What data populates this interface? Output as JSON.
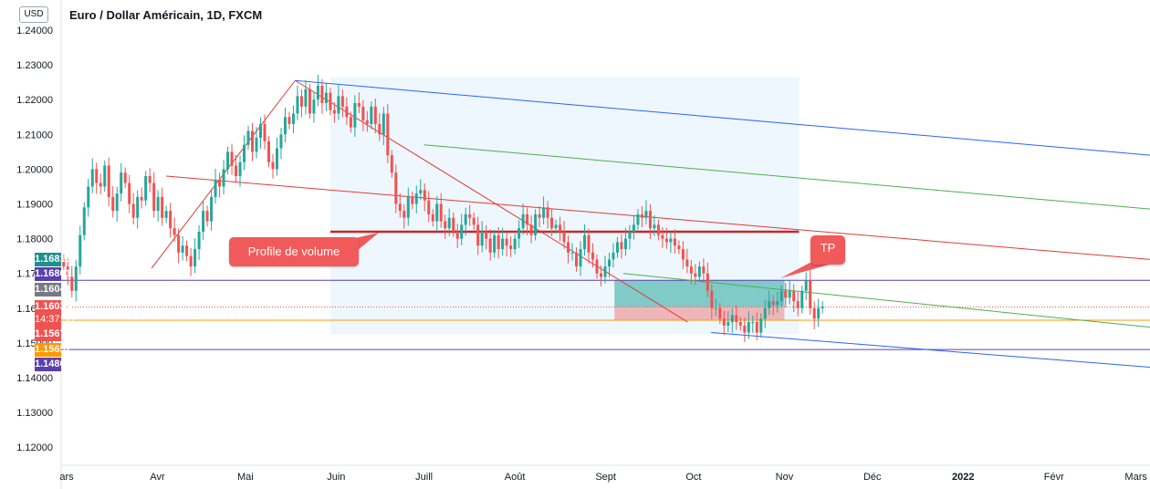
{
  "header": {
    "title": "Euro / Dollar Américain, 1D, FXCM",
    "currency_label": "USD"
  },
  "annotations": {
    "volume_profile_label": "Profile de volume",
    "tp_label": "TP"
  },
  "price_tags": [
    {
      "value": "1.16810",
      "color": "#1f8f8f"
    },
    {
      "value": "1.16801",
      "color": "#5a3fb0"
    },
    {
      "value": "1.16047",
      "color": "#777a82"
    },
    {
      "value": "1.16035",
      "sub": "14:37:56",
      "color": "#ef5350"
    },
    {
      "value": "1.15678",
      "color": "#ef5350"
    },
    {
      "value": "1.15652",
      "color": "#ff9800"
    },
    {
      "value": "1.14809",
      "color": "#5a3fb0"
    }
  ],
  "colors": {
    "up": "#26a69a",
    "down": "#ef5350",
    "channel_blue": "#2962ff",
    "channel_green": "#4caf50",
    "channel_red": "#e53935",
    "level_purple": "#5a3fb0",
    "level_orange": "#ff9800",
    "profile_bg": "#e3f2fd",
    "tp_green": "#26a69a",
    "sl_red": "#ef9a9a"
  },
  "chart_data": {
    "type": "candlestick",
    "y_ticks": [
      "1.24000",
      "1.23000",
      "1.22000",
      "1.21000",
      "1.20000",
      "1.19000",
      "1.18000",
      "1.17000",
      "1.16000",
      "1.15000",
      "1.14000",
      "1.13000",
      "1.12000"
    ],
    "ylim": [
      1.114,
      1.245
    ],
    "x_ticks": [
      "ars",
      "Avr",
      "Mai",
      "Juin",
      "Juill",
      "Août",
      "Sept",
      "Oct",
      "Nov",
      "Déc",
      "2022",
      "Févr",
      "Mars"
    ],
    "x_tick_days": [
      0,
      31,
      61,
      92,
      122,
      153,
      184,
      214,
      245,
      275,
      306,
      337,
      365
    ],
    "candles_start_day": -1,
    "closes": [
      1.172,
      1.169,
      1.165,
      1.172,
      1.181,
      1.189,
      1.195,
      1.2,
      1.196,
      1.195,
      1.201,
      1.192,
      1.188,
      1.193,
      1.199,
      1.196,
      1.19,
      1.186,
      1.192,
      1.191,
      1.198,
      1.196,
      1.188,
      1.192,
      1.186,
      1.188,
      1.183,
      1.181,
      1.176,
      1.178,
      1.175,
      1.172,
      1.177,
      1.182,
      1.188,
      1.185,
      1.192,
      1.197,
      1.195,
      1.2,
      1.205,
      1.201,
      1.198,
      1.202,
      1.207,
      1.211,
      1.205,
      1.209,
      1.213,
      1.208,
      1.202,
      1.2,
      1.206,
      1.21,
      1.215,
      1.213,
      1.216,
      1.221,
      1.218,
      1.223,
      1.216,
      1.22,
      1.224,
      1.219,
      1.222,
      1.217,
      1.216,
      1.221,
      1.218,
      1.215,
      1.212,
      1.219,
      1.218,
      1.214,
      1.213,
      1.218,
      1.213,
      1.21,
      1.216,
      1.204,
      1.199,
      1.19,
      1.188,
      1.186,
      1.192,
      1.19,
      1.193,
      1.194,
      1.191,
      1.187,
      1.185,
      1.19,
      1.185,
      1.183,
      1.186,
      1.182,
      1.18,
      1.184,
      1.187,
      1.186,
      1.184,
      1.178,
      1.182,
      1.18,
      1.176,
      1.181,
      1.177,
      1.18,
      1.178,
      1.177,
      1.18,
      1.183,
      1.187,
      1.184,
      1.181,
      1.187,
      1.186,
      1.189,
      1.186,
      1.183,
      1.184,
      1.182,
      1.179,
      1.176,
      1.176,
      1.172,
      1.177,
      1.181,
      1.176,
      1.174,
      1.17,
      1.169,
      1.172,
      1.174,
      1.176,
      1.179,
      1.177,
      1.18,
      1.182,
      1.184,
      1.187,
      1.186,
      1.188,
      1.183,
      1.184,
      1.181,
      1.18,
      1.179,
      1.18,
      1.178,
      1.177,
      1.174,
      1.172,
      1.17,
      1.169,
      1.172,
      1.17,
      1.165,
      1.16,
      1.16,
      1.157,
      1.155,
      1.156,
      1.158,
      1.156,
      1.155,
      1.153,
      1.156,
      1.156,
      1.153,
      1.157,
      1.16,
      1.162,
      1.161,
      1.162,
      1.165,
      1.163,
      1.165,
      1.162,
      1.16,
      1.165,
      1.168,
      1.16,
      1.157,
      1.16,
      1.1605
    ],
    "levels": [
      {
        "value": 1.16801,
        "color": "#5a3fb0"
      },
      {
        "value": 1.15652,
        "color": "#ff9800"
      },
      {
        "value": 1.14809,
        "color": "#5a3fb0"
      }
    ],
    "current_price": 1.16035,
    "trend_lines": [
      {
        "color": "#e53935",
        "from": [
          29,
          1.1715
        ],
        "to": [
          78,
          1.2255
        ]
      },
      {
        "color": "#e53935",
        "from": [
          78,
          1.2255
        ],
        "to": [
          212,
          1.156
        ]
      },
      {
        "color": "#e53935",
        "from": [
          34,
          1.198
        ],
        "to": [
          370,
          1.174
        ]
      },
      {
        "color": "#2962ff",
        "from": [
          78,
          1.2255
        ],
        "to": [
          370,
          1.204
        ]
      },
      {
        "color": "#4caf50",
        "from": [
          122,
          1.207
        ],
        "to": [
          370,
          1.1885
        ]
      },
      {
        "color": "#4caf50",
        "from": [
          190,
          1.17
        ],
        "to": [
          370,
          1.1545
        ]
      },
      {
        "color": "#2962ff",
        "from": [
          220,
          1.153
        ],
        "to": [
          370,
          1.143
        ]
      }
    ],
    "volume_profile_box": {
      "from_day": 90,
      "to_day": 250,
      "top": 1.2265,
      "bottom": 1.1525
    },
    "volume_profile_poc": 1.182,
    "position_box": {
      "from_day": 187,
      "to_day": 245,
      "entry": 1.16035,
      "tp": 1.16801,
      "sl": 1.15652
    }
  }
}
